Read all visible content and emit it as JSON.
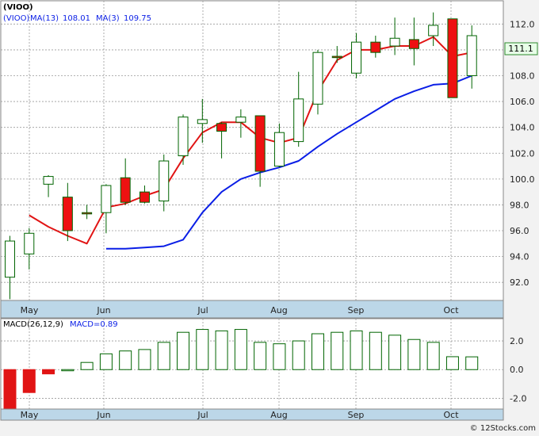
{
  "price_panel": {
    "symbol": "(VIOO)",
    "ma_long_label": "MA(13)",
    "ma_long_value": "108.01",
    "ma_short_label": "MA(3)",
    "ma_short_value": "109.75",
    "last_price": "111.1"
  },
  "macd_panel": {
    "label": "MACD(26,12,9)",
    "value_label": "MACD=0.89"
  },
  "watermark": "© 12Stocks.com",
  "colors": {
    "up_body": "#ffffff",
    "up_border": "#006400",
    "down_body": "#ee1111",
    "ma_long": "#0a1ee6",
    "ma_short": "#e11414",
    "axis_strip": "#bcd7e8",
    "macd_pos": "#006400",
    "macd_neg": "#e11414"
  },
  "chart_data": [
    {
      "type": "candlestick",
      "title": "(VIOO)",
      "x_month_labels": [
        "May",
        "Jun",
        "Jul",
        "Aug",
        "Sep",
        "Oct"
      ],
      "ylim": [
        90.6,
        113.8
      ],
      "y_ticks": [
        92.0,
        94.0,
        96.0,
        98.0,
        100.0,
        102.0,
        104.0,
        106.0,
        108.0,
        110.0,
        112.0
      ],
      "grid": true,
      "candles": [
        {
          "open": 92.4,
          "high": 95.6,
          "low": 90.7,
          "close": 95.2
        },
        {
          "open": 94.2,
          "high": 96.2,
          "low": 93.0,
          "close": 95.8
        },
        {
          "open": 99.6,
          "high": 100.3,
          "low": 98.6,
          "close": 100.2
        },
        {
          "open": 98.6,
          "high": 99.7,
          "low": 95.2,
          "close": 96.0
        },
        {
          "open": 97.4,
          "high": 98.0,
          "low": 96.9,
          "close": 97.3
        },
        {
          "open": 97.4,
          "high": 99.6,
          "low": 95.8,
          "close": 99.5
        },
        {
          "open": 100.1,
          "high": 101.6,
          "low": 98.0,
          "close": 98.2
        },
        {
          "open": 99.0,
          "high": 99.5,
          "low": 98.1,
          "close": 98.2
        },
        {
          "open": 98.3,
          "high": 101.9,
          "low": 97.5,
          "close": 101.4
        },
        {
          "open": 101.8,
          "high": 105.0,
          "low": 101.1,
          "close": 104.8
        },
        {
          "open": 104.3,
          "high": 106.2,
          "low": 102.8,
          "close": 104.6
        },
        {
          "open": 104.3,
          "high": 104.4,
          "low": 101.6,
          "close": 103.7
        },
        {
          "open": 104.4,
          "high": 105.4,
          "low": 103.2,
          "close": 104.8
        },
        {
          "open": 104.9,
          "high": 104.9,
          "low": 99.4,
          "close": 100.6
        },
        {
          "open": 101.0,
          "high": 104.3,
          "low": 100.9,
          "close": 103.6
        },
        {
          "open": 102.9,
          "high": 108.3,
          "low": 102.5,
          "close": 106.2
        },
        {
          "open": 105.8,
          "high": 110.0,
          "low": 105.0,
          "close": 109.8
        },
        {
          "open": 109.5,
          "high": 110.3,
          "low": 109.0,
          "close": 109.4
        },
        {
          "open": 108.2,
          "high": 111.3,
          "low": 107.8,
          "close": 110.6
        },
        {
          "open": 110.6,
          "high": 111.1,
          "low": 109.4,
          "close": 109.8
        },
        {
          "open": 110.3,
          "high": 112.5,
          "low": 109.6,
          "close": 110.9
        },
        {
          "open": 110.8,
          "high": 112.5,
          "low": 108.8,
          "close": 110.1
        },
        {
          "open": 111.1,
          "high": 112.9,
          "low": 110.3,
          "close": 111.9
        },
        {
          "open": 112.4,
          "high": 112.4,
          "low": 106.3,
          "close": 106.3
        },
        {
          "open": 108.0,
          "high": 111.9,
          "low": 107.0,
          "close": 111.1
        }
      ],
      "series": [
        {
          "name": "MA(13)",
          "values": [
            null,
            null,
            null,
            null,
            null,
            94.6,
            94.6,
            94.7,
            94.8,
            95.3,
            97.4,
            99.0,
            100.0,
            100.5,
            100.9,
            101.4,
            102.5,
            103.5,
            104.4,
            105.3,
            106.2,
            106.8,
            107.3,
            107.4,
            108.0
          ]
        },
        {
          "name": "MA(3)",
          "values": [
            null,
            97.2,
            96.3,
            95.6,
            95.0,
            97.8,
            98.1,
            98.7,
            99.2,
            101.6,
            103.6,
            104.4,
            104.4,
            103.2,
            102.8,
            103.2,
            106.8,
            109.2,
            110.0,
            110.0,
            110.3,
            110.3,
            111.0,
            109.5,
            109.8
          ]
        }
      ]
    },
    {
      "type": "bar",
      "title": "MACD(26,12,9)",
      "x_month_labels": [
        "May",
        "Jun",
        "Jul",
        "Aug",
        "Sep",
        "Oct"
      ],
      "ylim": [
        -2.75,
        3.55
      ],
      "y_ticks": [
        -2.0,
        0.0,
        2.0
      ],
      "grid": true,
      "values": [
        -2.9,
        -1.6,
        -0.3,
        0.0,
        0.5,
        1.1,
        1.3,
        1.4,
        1.9,
        2.6,
        2.8,
        2.7,
        2.8,
        1.9,
        1.8,
        2.0,
        2.5,
        2.6,
        2.7,
        2.6,
        2.4,
        2.1,
        1.9,
        0.9,
        0.89
      ]
    }
  ]
}
